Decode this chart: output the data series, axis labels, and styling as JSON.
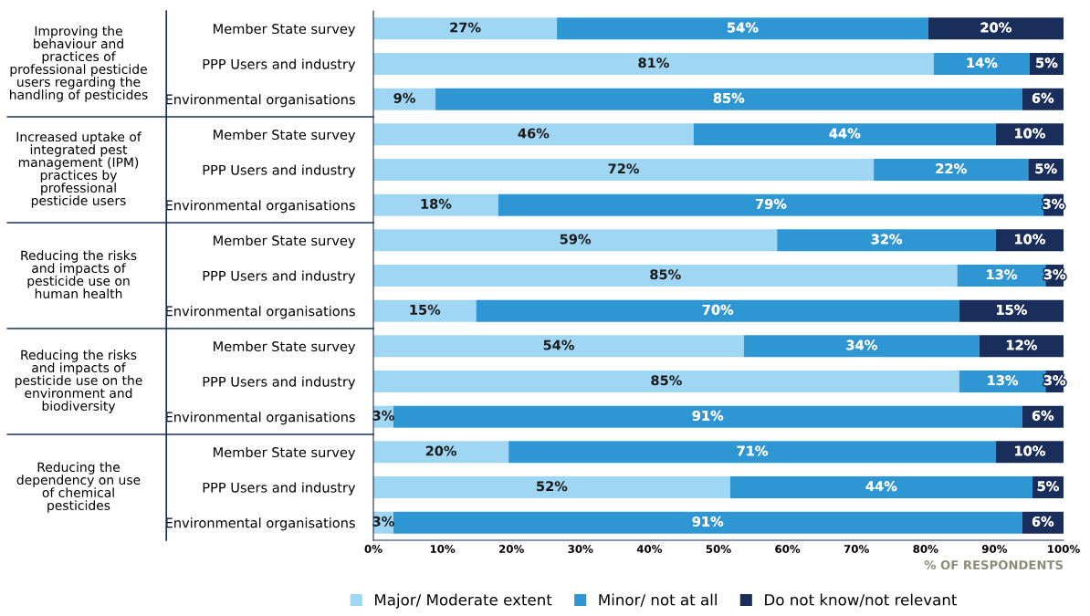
{
  "chart_data": {
    "type": "bar",
    "orientation": "horizontal",
    "stacked": true,
    "categories": [
      "Member State survey",
      "PPP Users and industry",
      "Environmental organisations",
      "Member State survey",
      "PPP Users and industry",
      "Environmental organisations",
      "Member State survey",
      "PPP Users and industry",
      "Environmental organisations",
      "Member State survey",
      "PPP Users and industry",
      "Environmental organisations",
      "Member State survey",
      "PPP Users and industry",
      "Environmental organisations"
    ],
    "series": [
      {
        "name": "Major/ Moderate extent",
        "color": "#9fd6f4",
        "values": [
          26.6,
          81.2,
          9.0,
          46.4,
          72.5,
          18.1,
          58.5,
          84.6,
          14.9,
          53.7,
          84.9,
          2.9,
          19.6,
          51.7,
          2.9
        ],
        "value_labels": [
          "27%",
          "81%",
          "9%",
          "46%",
          "72%",
          "18%",
          "59%",
          "85%",
          "15%",
          "54%",
          "85%",
          "3%",
          "20%",
          "52%",
          "3%"
        ]
      },
      {
        "name": "Minor/ not at all",
        "color": "#2f96d4",
        "values": [
          53.8,
          13.9,
          85.0,
          43.8,
          22.4,
          79.0,
          31.7,
          12.8,
          70.0,
          34.1,
          12.5,
          91.1,
          70.6,
          43.8,
          91.1
        ],
        "value_labels": [
          "54%",
          "14%",
          "85%",
          "44%",
          "22%",
          "79%",
          "32%",
          "13%",
          "70%",
          "34%",
          "13%",
          "91%",
          "71%",
          "44%",
          "91%"
        ]
      },
      {
        "name": "Do not know/not relevant",
        "color": "#1a2e5c",
        "values": [
          19.6,
          4.9,
          6.0,
          9.8,
          5.1,
          2.9,
          9.8,
          2.6,
          15.1,
          12.2,
          2.6,
          6.0,
          9.8,
          4.5,
          6.0
        ],
        "value_labels": [
          "20%",
          "5%",
          "6%",
          "10%",
          "5%",
          "3%",
          "10%",
          "3%",
          "15%",
          "12%",
          "3%",
          "6%",
          "10%",
          "5%",
          "6%"
        ]
      }
    ],
    "xlim": [
      0,
      100
    ],
    "xticks": [
      {
        "value": 0,
        "label": "0%"
      },
      {
        "value": 10,
        "label": "10%"
      },
      {
        "value": 20,
        "label": "20%"
      },
      {
        "value": 30,
        "label": "30%"
      },
      {
        "value": 40,
        "label": "40%"
      },
      {
        "value": 50,
        "label": "50%"
      },
      {
        "value": 60,
        "label": "60%"
      },
      {
        "value": 70,
        "label": "70%"
      },
      {
        "value": 80,
        "label": "80%"
      },
      {
        "value": 90,
        "label": "90%"
      },
      {
        "value": 100,
        "label": "100%"
      }
    ],
    "xlabel": "% OF RESPONDENTS",
    "annotations": [
      "Improving the\nbehaviour and\npractices of\nprofessional pesticide\nusers regarding the\nhandling of pesticides",
      "Increased uptake of\nintegrated pest\nmanagement (IPM)\npractices by\nprofessional\npesticide users",
      "Reducing the risks\nand impacts of\npesticide use on\nhuman health",
      "Reducing the risks\nand impacts of\npesticide use on the\nenvironment and\nbiodiversity",
      "Reducing the\ndependency on use\nof chemical\npesticides"
    ],
    "grid": false,
    "legend": "bottom"
  }
}
